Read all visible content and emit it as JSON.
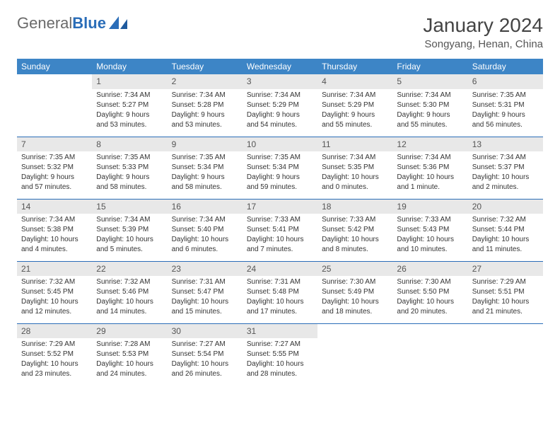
{
  "logo": {
    "text_gray": "General",
    "text_blue": "Blue"
  },
  "title": "January 2024",
  "location": "Songyang, Henan, China",
  "colors": {
    "header_bg": "#3d85c6",
    "header_text": "#ffffff",
    "daynum_bg": "#e8e8e8",
    "row_border": "#2a6db8",
    "logo_gray": "#6a6a6a",
    "logo_blue": "#2a6db8"
  },
  "weekdays": [
    "Sunday",
    "Monday",
    "Tuesday",
    "Wednesday",
    "Thursday",
    "Friday",
    "Saturday"
  ],
  "weeks": [
    [
      null,
      {
        "n": "1",
        "sunrise": "Sunrise: 7:34 AM",
        "sunset": "Sunset: 5:27 PM",
        "day1": "Daylight: 9 hours",
        "day2": "and 53 minutes."
      },
      {
        "n": "2",
        "sunrise": "Sunrise: 7:34 AM",
        "sunset": "Sunset: 5:28 PM",
        "day1": "Daylight: 9 hours",
        "day2": "and 53 minutes."
      },
      {
        "n": "3",
        "sunrise": "Sunrise: 7:34 AM",
        "sunset": "Sunset: 5:29 PM",
        "day1": "Daylight: 9 hours",
        "day2": "and 54 minutes."
      },
      {
        "n": "4",
        "sunrise": "Sunrise: 7:34 AM",
        "sunset": "Sunset: 5:29 PM",
        "day1": "Daylight: 9 hours",
        "day2": "and 55 minutes."
      },
      {
        "n": "5",
        "sunrise": "Sunrise: 7:34 AM",
        "sunset": "Sunset: 5:30 PM",
        "day1": "Daylight: 9 hours",
        "day2": "and 55 minutes."
      },
      {
        "n": "6",
        "sunrise": "Sunrise: 7:35 AM",
        "sunset": "Sunset: 5:31 PM",
        "day1": "Daylight: 9 hours",
        "day2": "and 56 minutes."
      }
    ],
    [
      {
        "n": "7",
        "sunrise": "Sunrise: 7:35 AM",
        "sunset": "Sunset: 5:32 PM",
        "day1": "Daylight: 9 hours",
        "day2": "and 57 minutes."
      },
      {
        "n": "8",
        "sunrise": "Sunrise: 7:35 AM",
        "sunset": "Sunset: 5:33 PM",
        "day1": "Daylight: 9 hours",
        "day2": "and 58 minutes."
      },
      {
        "n": "9",
        "sunrise": "Sunrise: 7:35 AM",
        "sunset": "Sunset: 5:34 PM",
        "day1": "Daylight: 9 hours",
        "day2": "and 58 minutes."
      },
      {
        "n": "10",
        "sunrise": "Sunrise: 7:35 AM",
        "sunset": "Sunset: 5:34 PM",
        "day1": "Daylight: 9 hours",
        "day2": "and 59 minutes."
      },
      {
        "n": "11",
        "sunrise": "Sunrise: 7:34 AM",
        "sunset": "Sunset: 5:35 PM",
        "day1": "Daylight: 10 hours",
        "day2": "and 0 minutes."
      },
      {
        "n": "12",
        "sunrise": "Sunrise: 7:34 AM",
        "sunset": "Sunset: 5:36 PM",
        "day1": "Daylight: 10 hours",
        "day2": "and 1 minute."
      },
      {
        "n": "13",
        "sunrise": "Sunrise: 7:34 AM",
        "sunset": "Sunset: 5:37 PM",
        "day1": "Daylight: 10 hours",
        "day2": "and 2 minutes."
      }
    ],
    [
      {
        "n": "14",
        "sunrise": "Sunrise: 7:34 AM",
        "sunset": "Sunset: 5:38 PM",
        "day1": "Daylight: 10 hours",
        "day2": "and 4 minutes."
      },
      {
        "n": "15",
        "sunrise": "Sunrise: 7:34 AM",
        "sunset": "Sunset: 5:39 PM",
        "day1": "Daylight: 10 hours",
        "day2": "and 5 minutes."
      },
      {
        "n": "16",
        "sunrise": "Sunrise: 7:34 AM",
        "sunset": "Sunset: 5:40 PM",
        "day1": "Daylight: 10 hours",
        "day2": "and 6 minutes."
      },
      {
        "n": "17",
        "sunrise": "Sunrise: 7:33 AM",
        "sunset": "Sunset: 5:41 PM",
        "day1": "Daylight: 10 hours",
        "day2": "and 7 minutes."
      },
      {
        "n": "18",
        "sunrise": "Sunrise: 7:33 AM",
        "sunset": "Sunset: 5:42 PM",
        "day1": "Daylight: 10 hours",
        "day2": "and 8 minutes."
      },
      {
        "n": "19",
        "sunrise": "Sunrise: 7:33 AM",
        "sunset": "Sunset: 5:43 PM",
        "day1": "Daylight: 10 hours",
        "day2": "and 10 minutes."
      },
      {
        "n": "20",
        "sunrise": "Sunrise: 7:32 AM",
        "sunset": "Sunset: 5:44 PM",
        "day1": "Daylight: 10 hours",
        "day2": "and 11 minutes."
      }
    ],
    [
      {
        "n": "21",
        "sunrise": "Sunrise: 7:32 AM",
        "sunset": "Sunset: 5:45 PM",
        "day1": "Daylight: 10 hours",
        "day2": "and 12 minutes."
      },
      {
        "n": "22",
        "sunrise": "Sunrise: 7:32 AM",
        "sunset": "Sunset: 5:46 PM",
        "day1": "Daylight: 10 hours",
        "day2": "and 14 minutes."
      },
      {
        "n": "23",
        "sunrise": "Sunrise: 7:31 AM",
        "sunset": "Sunset: 5:47 PM",
        "day1": "Daylight: 10 hours",
        "day2": "and 15 minutes."
      },
      {
        "n": "24",
        "sunrise": "Sunrise: 7:31 AM",
        "sunset": "Sunset: 5:48 PM",
        "day1": "Daylight: 10 hours",
        "day2": "and 17 minutes."
      },
      {
        "n": "25",
        "sunrise": "Sunrise: 7:30 AM",
        "sunset": "Sunset: 5:49 PM",
        "day1": "Daylight: 10 hours",
        "day2": "and 18 minutes."
      },
      {
        "n": "26",
        "sunrise": "Sunrise: 7:30 AM",
        "sunset": "Sunset: 5:50 PM",
        "day1": "Daylight: 10 hours",
        "day2": "and 20 minutes."
      },
      {
        "n": "27",
        "sunrise": "Sunrise: 7:29 AM",
        "sunset": "Sunset: 5:51 PM",
        "day1": "Daylight: 10 hours",
        "day2": "and 21 minutes."
      }
    ],
    [
      {
        "n": "28",
        "sunrise": "Sunrise: 7:29 AM",
        "sunset": "Sunset: 5:52 PM",
        "day1": "Daylight: 10 hours",
        "day2": "and 23 minutes."
      },
      {
        "n": "29",
        "sunrise": "Sunrise: 7:28 AM",
        "sunset": "Sunset: 5:53 PM",
        "day1": "Daylight: 10 hours",
        "day2": "and 24 minutes."
      },
      {
        "n": "30",
        "sunrise": "Sunrise: 7:27 AM",
        "sunset": "Sunset: 5:54 PM",
        "day1": "Daylight: 10 hours",
        "day2": "and 26 minutes."
      },
      {
        "n": "31",
        "sunrise": "Sunrise: 7:27 AM",
        "sunset": "Sunset: 5:55 PM",
        "day1": "Daylight: 10 hours",
        "day2": "and 28 minutes."
      },
      null,
      null,
      null
    ]
  ]
}
